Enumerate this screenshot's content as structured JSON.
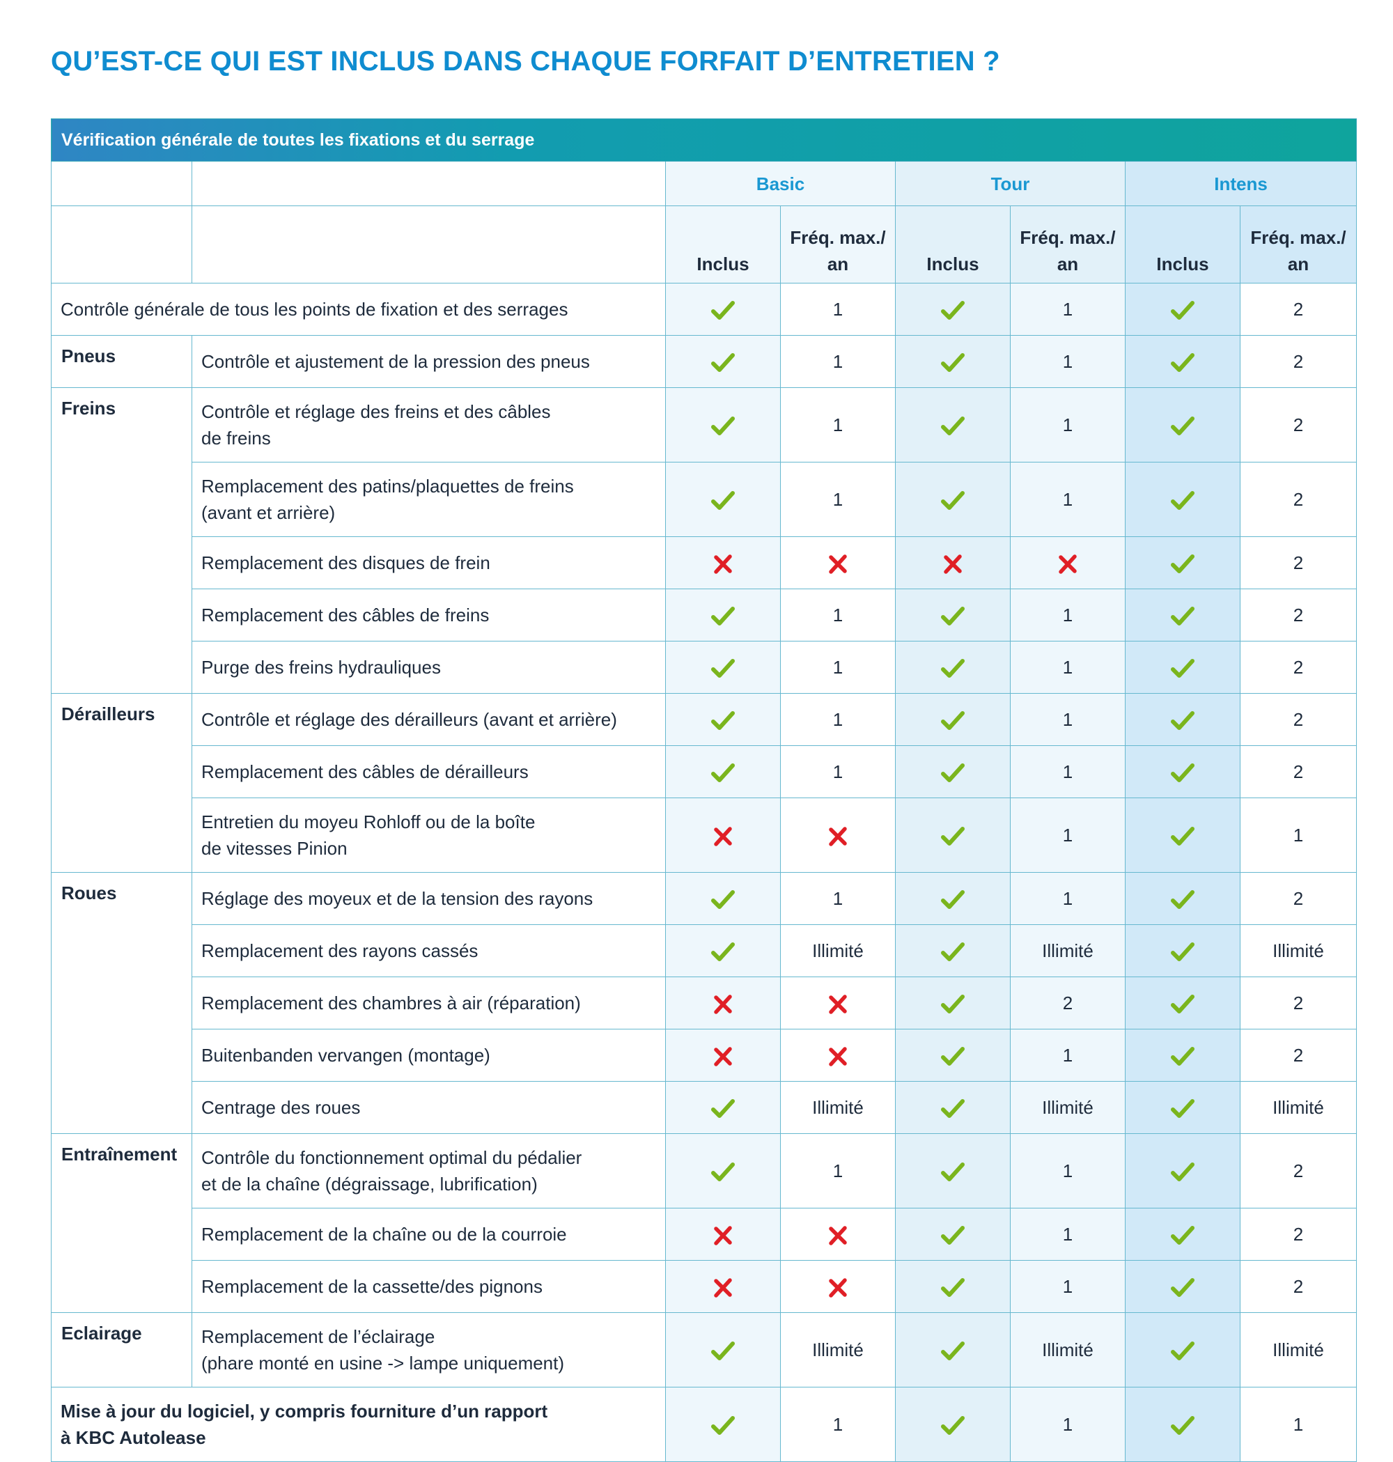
{
  "title": "QU’EST-CE QUI EST INCLUS DANS CHAQUE FORFAIT D’ENTRETIEN ?",
  "banner": "Vérification générale de toutes les fixations et du serrage",
  "plans": [
    "Basic",
    "Tour",
    "Intens"
  ],
  "sub_headers": {
    "included": "Inclus",
    "freq_line1": "Fréq. max./",
    "freq_line2": "an"
  },
  "colors": {
    "title": "#0f8cd0",
    "check": "#7ab51d",
    "cross": "#e01f26",
    "border": "#66b8cf"
  },
  "icons": {
    "yes": "check-icon",
    "no": "cross-icon"
  },
  "rows": [
    {
      "category": "",
      "label": "Contrôle générale de tous les points de fixation et des serrages",
      "full": true,
      "basic": {
        "inc": "yes",
        "freq": "1"
      },
      "tour": {
        "inc": "yes",
        "freq": "1"
      },
      "intens": {
        "inc": "yes",
        "freq": "2"
      }
    },
    {
      "category": "Pneus",
      "label": "Contrôle et ajustement de la pression des pneus",
      "basic": {
        "inc": "yes",
        "freq": "1"
      },
      "tour": {
        "inc": "yes",
        "freq": "1"
      },
      "intens": {
        "inc": "yes",
        "freq": "2"
      }
    },
    {
      "category": "Freins",
      "label": "Contrôle et réglage des freins et des câbles\nde freins",
      "basic": {
        "inc": "yes",
        "freq": "1"
      },
      "tour": {
        "inc": "yes",
        "freq": "1"
      },
      "intens": {
        "inc": "yes",
        "freq": "2"
      }
    },
    {
      "category": "",
      "label": "Remplacement des patins/plaquettes de freins\n(avant et arrière)",
      "basic": {
        "inc": "yes",
        "freq": "1"
      },
      "tour": {
        "inc": "yes",
        "freq": "1"
      },
      "intens": {
        "inc": "yes",
        "freq": "2"
      }
    },
    {
      "category": "",
      "label": "Remplacement des disques de frein",
      "basic": {
        "inc": "no",
        "freq": "x"
      },
      "tour": {
        "inc": "no",
        "freq": "x"
      },
      "intens": {
        "inc": "yes",
        "freq": "2"
      }
    },
    {
      "category": "",
      "label": "Remplacement des câbles de freins",
      "basic": {
        "inc": "yes",
        "freq": "1"
      },
      "tour": {
        "inc": "yes",
        "freq": "1"
      },
      "intens": {
        "inc": "yes",
        "freq": "2"
      }
    },
    {
      "category": "",
      "label": "Purge des freins hydrauliques",
      "basic": {
        "inc": "yes",
        "freq": "1"
      },
      "tour": {
        "inc": "yes",
        "freq": "1"
      },
      "intens": {
        "inc": "yes",
        "freq": "2"
      }
    },
    {
      "category": "Dérailleurs",
      "label": "Contrôle et réglage des dérailleurs (avant et arrière)",
      "basic": {
        "inc": "yes",
        "freq": "1"
      },
      "tour": {
        "inc": "yes",
        "freq": "1"
      },
      "intens": {
        "inc": "yes",
        "freq": "2"
      }
    },
    {
      "category": "",
      "label": "Remplacement des câbles de dérailleurs",
      "basic": {
        "inc": "yes",
        "freq": "1"
      },
      "tour": {
        "inc": "yes",
        "freq": "1"
      },
      "intens": {
        "inc": "yes",
        "freq": "2"
      }
    },
    {
      "category": "",
      "label": "Entretien du moyeu Rohloff ou de la boîte\nde vitesses Pinion",
      "basic": {
        "inc": "no",
        "freq": "x"
      },
      "tour": {
        "inc": "yes",
        "freq": "1"
      },
      "intens": {
        "inc": "yes",
        "freq": "1"
      }
    },
    {
      "category": "Roues",
      "label": "Réglage des moyeux et de la tension des rayons",
      "basic": {
        "inc": "yes",
        "freq": "1"
      },
      "tour": {
        "inc": "yes",
        "freq": "1"
      },
      "intens": {
        "inc": "yes",
        "freq": "2"
      }
    },
    {
      "category": "",
      "label": "Remplacement des rayons cassés",
      "basic": {
        "inc": "yes",
        "freq": "Illimité"
      },
      "tour": {
        "inc": "yes",
        "freq": "Illimité"
      },
      "intens": {
        "inc": "yes",
        "freq": "Illimité"
      }
    },
    {
      "category": "",
      "label": "Remplacement des chambres à air (réparation)",
      "basic": {
        "inc": "no",
        "freq": "x"
      },
      "tour": {
        "inc": "yes",
        "freq": "2"
      },
      "intens": {
        "inc": "yes",
        "freq": "2"
      }
    },
    {
      "category": "",
      "label": "Buitenbanden vervangen (montage)",
      "basic": {
        "inc": "no",
        "freq": "x"
      },
      "tour": {
        "inc": "yes",
        "freq": "1"
      },
      "intens": {
        "inc": "yes",
        "freq": "2"
      }
    },
    {
      "category": "",
      "label": "Centrage des roues",
      "basic": {
        "inc": "yes",
        "freq": "Illimité"
      },
      "tour": {
        "inc": "yes",
        "freq": "Illimité"
      },
      "intens": {
        "inc": "yes",
        "freq": "Illimité"
      }
    },
    {
      "category": "Entraînement",
      "label": "Contrôle du fonctionnement optimal du pédalier\net de la chaîne (dégraissage, lubrification)",
      "basic": {
        "inc": "yes",
        "freq": "1"
      },
      "tour": {
        "inc": "yes",
        "freq": "1"
      },
      "intens": {
        "inc": "yes",
        "freq": "2"
      }
    },
    {
      "category": "",
      "label": "Remplacement de la chaîne ou de la courroie",
      "basic": {
        "inc": "no",
        "freq": "x"
      },
      "tour": {
        "inc": "yes",
        "freq": "1"
      },
      "intens": {
        "inc": "yes",
        "freq": "2"
      }
    },
    {
      "category": "",
      "label": "Remplacement de la cassette/des pignons",
      "basic": {
        "inc": "no",
        "freq": "x"
      },
      "tour": {
        "inc": "yes",
        "freq": "1"
      },
      "intens": {
        "inc": "yes",
        "freq": "2"
      }
    },
    {
      "category": "Eclairage",
      "label": "Remplacement de l’éclairage\n(phare monté en usine -> lampe uniquement)",
      "basic": {
        "inc": "yes",
        "freq": "Illimité"
      },
      "tour": {
        "inc": "yes",
        "freq": "Illimité"
      },
      "intens": {
        "inc": "yes",
        "freq": "Illimité"
      }
    },
    {
      "category": "",
      "label": "Mise à jour du logiciel, y compris fourniture d’un rapport\nà KBC Autolease",
      "full": true,
      "bold": true,
      "basic": {
        "inc": "yes",
        "freq": "1"
      },
      "tour": {
        "inc": "yes",
        "freq": "1"
      },
      "intens": {
        "inc": "yes",
        "freq": "1"
      }
    }
  ]
}
